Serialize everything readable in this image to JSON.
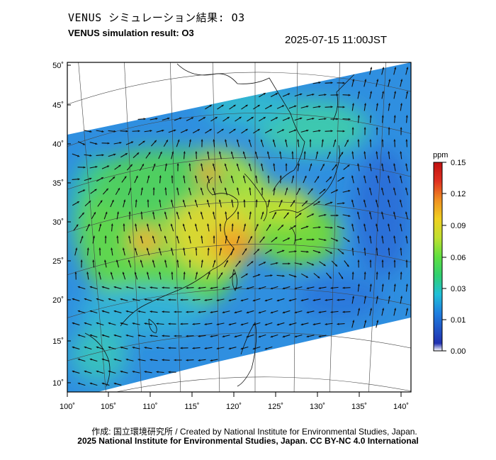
{
  "header": {
    "title_ja": "VENUS シミュレーション結果: O3",
    "title_en": "VENUS simulation result: O3",
    "timestamp": "2025-07-15 11:00JST"
  },
  "map": {
    "lon_ticks": [
      "100˚",
      "105˚",
      "110˚",
      "115˚",
      "120˚",
      "125˚",
      "130˚",
      "135˚",
      "140˚"
    ],
    "lat_ticks": [
      "50˚",
      "45˚",
      "40˚",
      "35˚",
      "30˚",
      "25˚",
      "20˚",
      "15˚",
      "10˚"
    ],
    "lon_range": [
      100,
      142
    ],
    "lat_range": [
      9,
      51
    ],
    "colors": {
      "ocean_field": "#2f8fe0",
      "background": "#ffffff",
      "wind_arrow": "#111111"
    }
  },
  "colorbar": {
    "unit": "ppm",
    "tick_labels": [
      "0.15",
      "0.12",
      "0.09",
      "0.06",
      "0.03",
      "0.01",
      "0.00"
    ],
    "colors": [
      "#ffffff",
      "#2030b0",
      "#1f7fe0",
      "#20c0d8",
      "#30d070",
      "#60e040",
      "#c0e030",
      "#f0d020",
      "#f09020",
      "#e03020",
      "#c01010"
    ]
  },
  "footer": {
    "credit": "作成: 国立環境研究所 / Created by National Institute for Environmental Studies, Japan.",
    "license": "2025 National Institute for Environmental Studies, Japan. CC BY-NC 4.0 International"
  }
}
